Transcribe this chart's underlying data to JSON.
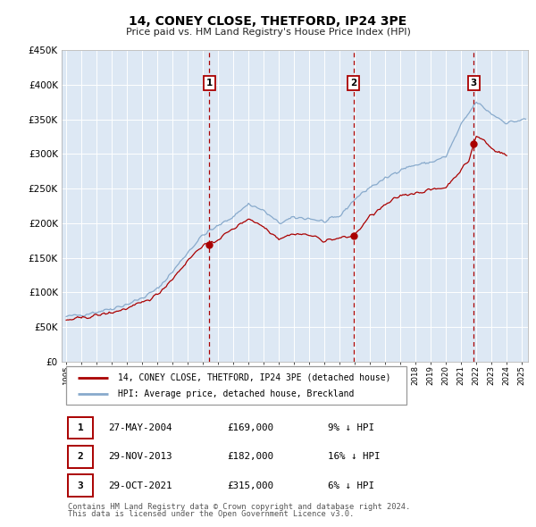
{
  "title": "14, CONEY CLOSE, THETFORD, IP24 3PE",
  "subtitle": "Price paid vs. HM Land Registry's House Price Index (HPI)",
  "ylim": [
    0,
    450000
  ],
  "yticks": [
    0,
    50000,
    100000,
    150000,
    200000,
    250000,
    300000,
    350000,
    400000,
    450000
  ],
  "ytick_labels": [
    "£0",
    "£50K",
    "£100K",
    "£150K",
    "£200K",
    "£250K",
    "£300K",
    "£350K",
    "£400K",
    "£450K"
  ],
  "xlim_start": 1994.7,
  "xlim_end": 2025.4,
  "line_red_label": "14, CONEY CLOSE, THETFORD, IP24 3PE (detached house)",
  "line_blue_label": "HPI: Average price, detached house, Breckland",
  "sale_dates": [
    2004.41,
    2013.91,
    2021.83
  ],
  "sale_prices": [
    169000,
    182000,
    315000
  ],
  "sale_labels": [
    "1",
    "2",
    "3"
  ],
  "sale_date_strs": [
    "27-MAY-2004",
    "29-NOV-2013",
    "29-OCT-2021"
  ],
  "sale_price_strs": [
    "£169,000",
    "£182,000",
    "£315,000"
  ],
  "sale_hpi_strs": [
    "9% ↓ HPI",
    "16% ↓ HPI",
    "6% ↓ HPI"
  ],
  "footer1": "Contains HM Land Registry data © Crown copyright and database right 2024.",
  "footer2": "This data is licensed under the Open Government Licence v3.0.",
  "red_color": "#aa0000",
  "blue_color": "#88aacc",
  "bg_color": "#dde8f4",
  "grid_color": "#ffffff"
}
